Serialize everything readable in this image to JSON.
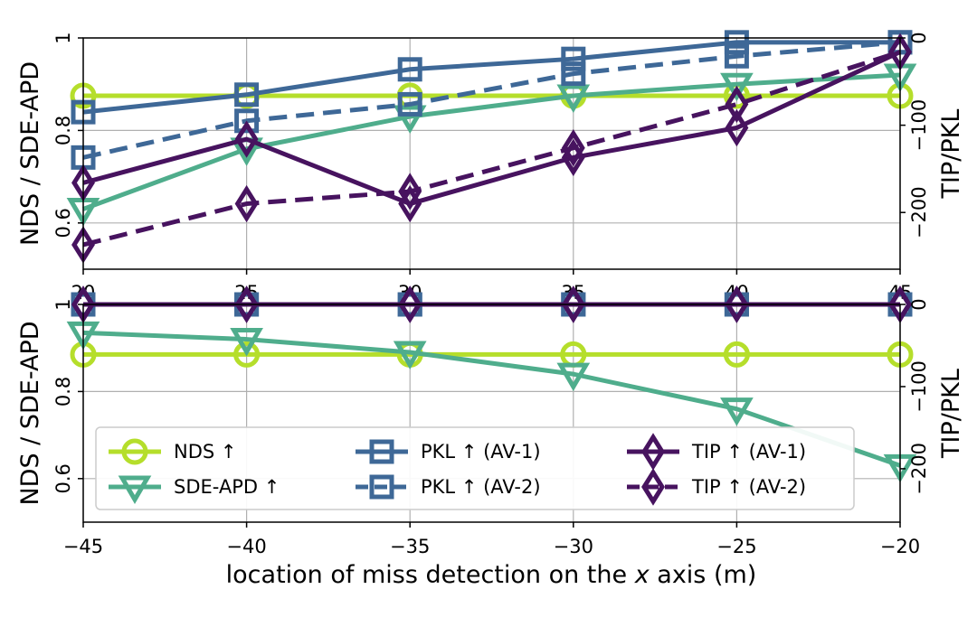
{
  "figure": {
    "xlabel_prefix": "location of miss detection on the ",
    "xlabel_var": "x",
    "xlabel_suffix": " axis (m)"
  },
  "legend": {
    "placement": "lower-left of bottom panel",
    "entries": [
      {
        "label": "NDS ↑",
        "series": "NDS"
      },
      {
        "label": "SDE-APD ↑",
        "series": "SDE-APD"
      },
      {
        "label": "PKL ↑  (AV-1)",
        "series": "PKL AV-1"
      },
      {
        "label": "PKL ↑  (AV-2)",
        "series": "PKL AV-2"
      },
      {
        "label": "TIP ↑  (AV-1)",
        "series": "TIP AV-1"
      },
      {
        "label": "TIP ↑  (AV-2)",
        "series": "TIP AV-2"
      }
    ]
  },
  "styles": {
    "NDS": {
      "color": "#b5de2b",
      "marker": "circle",
      "dash": false
    },
    "SDE-APD": {
      "color": "#4fad8c",
      "marker": "triangle-down",
      "dash": false
    },
    "PKL AV-1": {
      "color": "#3e6897",
      "marker": "square",
      "dash": false
    },
    "PKL AV-2": {
      "color": "#3e6897",
      "marker": "square",
      "dash": true
    },
    "TIP AV-1": {
      "color": "#47135f",
      "marker": "diamond",
      "dash": false
    },
    "TIP AV-2": {
      "color": "#47135f",
      "marker": "diamond",
      "dash": true
    }
  },
  "chart_data": [
    {
      "type": "line",
      "panel": "top",
      "x": [
        20,
        25,
        30,
        35,
        40,
        45
      ],
      "xticks": [
        20,
        25,
        30,
        35,
        40,
        45
      ],
      "xlim": [
        20,
        45
      ],
      "ylabel": "NDS / SDE-APD",
      "ylim": [
        0.5,
        1.0
      ],
      "yticks": [
        0.6,
        0.8,
        1.0
      ],
      "y2label": "TIP/PKL",
      "y2lim": [
        -265,
        0
      ],
      "y2ticks": [
        -200,
        -100,
        0
      ],
      "grid": true,
      "series": [
        {
          "name": "NDS",
          "axis": "left",
          "values": [
            0.875,
            0.875,
            0.875,
            0.875,
            0.875,
            0.875
          ]
        },
        {
          "name": "SDE-APD",
          "axis": "left",
          "values": [
            0.63,
            0.76,
            0.83,
            0.875,
            0.9,
            0.92
          ]
        },
        {
          "name": "PKL AV-1",
          "axis": "right",
          "values": [
            -85,
            -65,
            -36,
            -24,
            -5,
            -5
          ]
        },
        {
          "name": "PKL AV-2",
          "axis": "right",
          "values": [
            -137,
            -95,
            -76,
            -41,
            -21,
            -5
          ]
        },
        {
          "name": "TIP AV-1",
          "axis": "right",
          "values": [
            -166,
            -116,
            -190,
            -137,
            -103,
            -16
          ]
        },
        {
          "name": "TIP AV-2",
          "axis": "right",
          "values": [
            -237,
            -190,
            -176,
            -126,
            -76,
            -16
          ]
        }
      ]
    },
    {
      "type": "line",
      "panel": "bottom",
      "x": [
        -45,
        -40,
        -35,
        -30,
        -25,
        -20
      ],
      "xticks": [
        -45,
        -40,
        -35,
        -30,
        -25,
        -20
      ],
      "xlim": [
        -45,
        -20
      ],
      "ylabel": "NDS / SDE-APD",
      "ylim": [
        0.5,
        1.0
      ],
      "yticks": [
        0.6,
        0.8,
        1.0
      ],
      "y2label": "TIP/PKL",
      "y2lim": [
        -265,
        0
      ],
      "y2ticks": [
        -200,
        -100,
        0
      ],
      "grid": true,
      "series": [
        {
          "name": "NDS",
          "axis": "left",
          "values": [
            0.885,
            0.885,
            0.885,
            0.885,
            0.885,
            0.885
          ]
        },
        {
          "name": "SDE-APD",
          "axis": "left",
          "values": [
            0.935,
            0.92,
            0.89,
            0.84,
            0.76,
            0.63
          ]
        },
        {
          "name": "PKL AV-1",
          "axis": "right",
          "values": [
            0,
            0,
            0,
            0,
            0,
            0
          ]
        },
        {
          "name": "PKL AV-2",
          "axis": "right",
          "values": [
            0,
            0,
            0,
            0,
            0,
            0
          ]
        },
        {
          "name": "TIP AV-1",
          "axis": "right",
          "values": [
            0,
            0,
            0,
            0,
            0,
            0
          ]
        },
        {
          "name": "TIP AV-2",
          "axis": "right",
          "values": [
            0,
            0,
            0,
            0,
            0,
            0
          ]
        }
      ]
    }
  ]
}
